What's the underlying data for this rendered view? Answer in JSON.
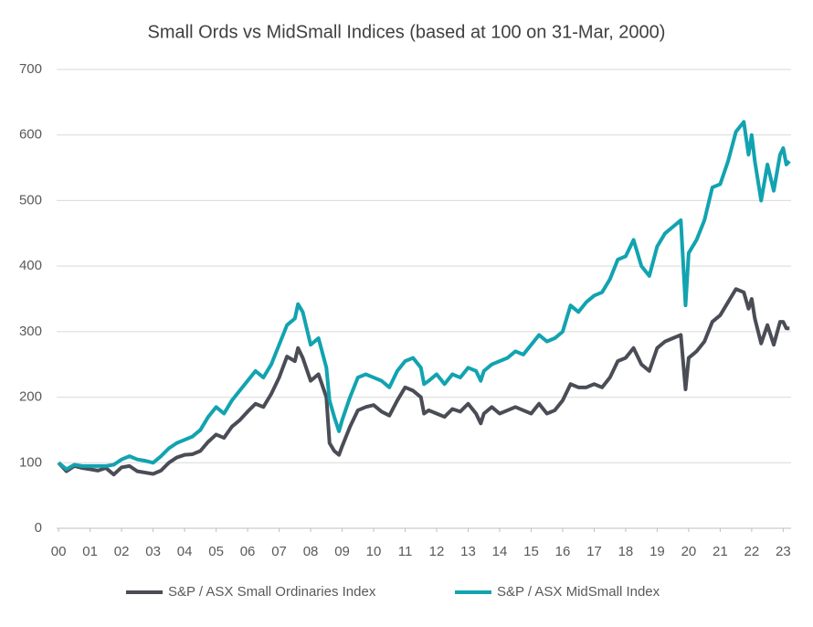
{
  "chart_data": {
    "type": "line",
    "title": "Small Ords vs MidSmall Indices (based at 100 on 31-Mar, 2000)",
    "x": [
      0,
      0.25,
      0.5,
      0.75,
      1,
      1.25,
      1.5,
      1.75,
      2,
      2.25,
      2.5,
      2.75,
      3,
      3.25,
      3.5,
      3.75,
      4,
      4.25,
      4.5,
      4.75,
      5,
      5.25,
      5.5,
      5.75,
      6,
      6.25,
      6.5,
      6.75,
      7,
      7.25,
      7.5,
      7.6,
      7.75,
      8,
      8.25,
      8.5,
      8.6,
      8.75,
      8.9,
      9,
      9.25,
      9.5,
      9.75,
      10,
      10.25,
      10.5,
      10.75,
      11,
      11.25,
      11.5,
      11.6,
      11.75,
      12,
      12.25,
      12.5,
      12.75,
      13,
      13.25,
      13.4,
      13.5,
      13.75,
      14,
      14.25,
      14.5,
      14.75,
      15,
      15.25,
      15.5,
      15.75,
      16,
      16.25,
      16.5,
      16.75,
      17,
      17.25,
      17.5,
      17.75,
      18,
      18.25,
      18.5,
      18.75,
      19,
      19.25,
      19.5,
      19.75,
      19.9,
      20,
      20.25,
      20.5,
      20.75,
      21,
      21.25,
      21.5,
      21.75,
      21.9,
      22,
      22.1,
      22.3,
      22.5,
      22.7,
      22.9,
      23,
      23.1,
      23.2
    ],
    "series": [
      {
        "name": "S&P / ASX Small Ordinaries Index",
        "color": "#4a4d55",
        "values": [
          100,
          87,
          95,
          92,
          90,
          88,
          92,
          82,
          93,
          95,
          87,
          85,
          83,
          88,
          100,
          108,
          112,
          113,
          118,
          132,
          143,
          138,
          155,
          165,
          178,
          190,
          185,
          205,
          230,
          262,
          255,
          275,
          260,
          225,
          235,
          200,
          130,
          118,
          112,
          125,
          155,
          180,
          185,
          188,
          178,
          172,
          195,
          215,
          210,
          200,
          175,
          180,
          175,
          170,
          182,
          178,
          190,
          175,
          160,
          175,
          185,
          175,
          180,
          185,
          180,
          175,
          190,
          175,
          180,
          195,
          220,
          215,
          215,
          220,
          215,
          230,
          255,
          260,
          275,
          250,
          240,
          275,
          285,
          290,
          295,
          212,
          260,
          270,
          285,
          315,
          325,
          345,
          365,
          360,
          335,
          350,
          320,
          282,
          310,
          280,
          315,
          315,
          305,
          305
        ]
      },
      {
        "name": "S&P / ASX MidSmall Index",
        "color": "#12a3b0",
        "values": [
          100,
          90,
          97,
          95,
          95,
          95,
          95,
          97,
          105,
          110,
          105,
          103,
          100,
          110,
          122,
          130,
          135,
          140,
          150,
          170,
          185,
          175,
          195,
          210,
          225,
          240,
          230,
          250,
          280,
          310,
          320,
          342,
          330,
          280,
          290,
          245,
          195,
          170,
          148,
          165,
          200,
          230,
          235,
          230,
          225,
          215,
          240,
          255,
          260,
          245,
          220,
          225,
          235,
          220,
          235,
          230,
          245,
          240,
          225,
          240,
          250,
          255,
          260,
          270,
          265,
          280,
          295,
          285,
          290,
          300,
          340,
          330,
          345,
          355,
          360,
          380,
          410,
          415,
          440,
          400,
          385,
          430,
          450,
          460,
          470,
          340,
          420,
          440,
          470,
          520,
          525,
          560,
          605,
          620,
          570,
          600,
          560,
          500,
          555,
          515,
          570,
          580,
          555,
          560
        ]
      }
    ],
    "xlim": [
      -0.7,
      23.25
    ],
    "xticks": [
      {
        "value": 0,
        "label": "00"
      },
      {
        "value": 1,
        "label": "01"
      },
      {
        "value": 2,
        "label": "02"
      },
      {
        "value": 3,
        "label": "03"
      },
      {
        "value": 4,
        "label": "04"
      },
      {
        "value": 5,
        "label": "05"
      },
      {
        "value": 6,
        "label": "06"
      },
      {
        "value": 7,
        "label": "07"
      },
      {
        "value": 8,
        "label": "08"
      },
      {
        "value": 9,
        "label": "09"
      },
      10,
      11,
      12,
      13,
      14,
      15,
      16,
      17,
      18,
      19,
      20,
      21,
      22,
      23
    ],
    "ylim": [
      0,
      700
    ],
    "yticks": [
      0,
      100,
      200,
      300,
      400,
      500,
      600,
      700
    ],
    "grid": true,
    "legend": "bottom"
  }
}
